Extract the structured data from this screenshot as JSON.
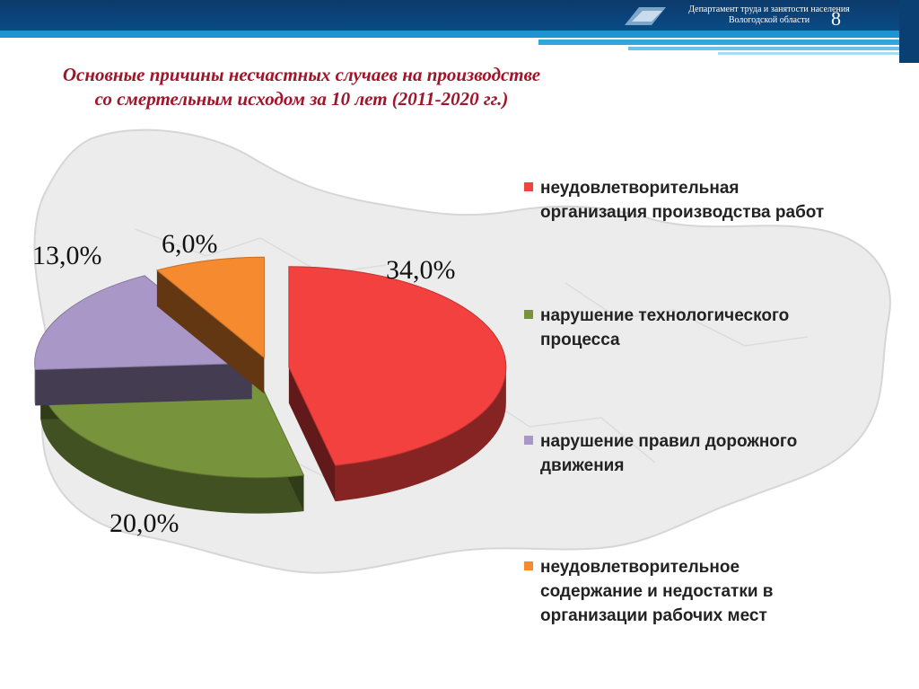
{
  "header": {
    "department_line1": "Департамент труда и занятости населения",
    "department_line2": "Вологодской области",
    "page_number": "8"
  },
  "title": {
    "line1": "Основные причины несчастных случаев на производстве",
    "line2": "со смертельным исходом за 10 лет (2011-2020 гг.)"
  },
  "colors": {
    "red": "#f2413f",
    "green": "#77933c",
    "purple": "#a997c8",
    "orange": "#f58a2e",
    "title": "#a0152a",
    "header": "#0a4b86"
  },
  "chart_data": {
    "type": "pie",
    "style": "3d-exploded",
    "title": "Основные причины несчастных случаев на производстве со смертельным исходом за 10 лет (2011-2020 гг.)",
    "legend_position": "right",
    "slices": [
      {
        "label": "неудовлетворительная организация производства работ",
        "value": 34.0,
        "display": "34,0%",
        "color": "#f2413f"
      },
      {
        "label": "нарушение технологического процесса",
        "value": 20.0,
        "display": "20,0%",
        "color": "#77933c"
      },
      {
        "label": "нарушение правил дорожного движения",
        "value": 13.0,
        "display": "13,0%",
        "color": "#a997c8"
      },
      {
        "label": "неудовлетворительное содержание и   недостатки в организации рабочих мест",
        "value": 6.0,
        "display": "6,0%",
        "color": "#f58a2e"
      }
    ]
  },
  "legend": {
    "items": [
      {
        "label": "неудовлетворительная\nорганизация производства работ",
        "color": "#f2413f"
      },
      {
        "label": "нарушение технологического\nпроцесса",
        "color": "#77933c"
      },
      {
        "label": "нарушение правил дорожного\nдвижения",
        "color": "#a997c8"
      },
      {
        "label": "неудовлетворительное\nсодержание и   недостатки в\nорганизации рабочих мест",
        "color": "#f58a2e"
      }
    ]
  }
}
